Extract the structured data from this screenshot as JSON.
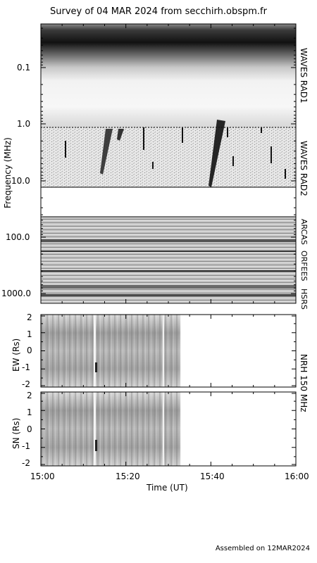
{
  "title": "Survey of 04 MAR 2024 from secchirh.obspm.fr",
  "footer": "Assembled on 12MAR2024",
  "colors": {
    "background": "#ffffff",
    "axis": "#000000"
  },
  "chart_data": [
    {
      "type": "heatmap",
      "name": "dynamic-spectrum",
      "ylabel": "Frequency (MHz)",
      "yscale": "log",
      "yaxis_reversed": true,
      "ytick_labels": [
        "0.1",
        "1.0",
        "10.0",
        "100.0",
        "1000.0"
      ],
      "instruments": [
        "WAVES RAD1",
        "WAVES RAD2",
        "ARCAS",
        "ORFEES",
        "HSRS"
      ],
      "xlim": [
        "15:00",
        "16:00"
      ],
      "colormap": "grayscale"
    },
    {
      "type": "heatmap",
      "name": "nrh-ew",
      "ylabel": "EW (Rs)",
      "ylim": [
        -2,
        2
      ],
      "ytick_labels": [
        "2",
        "1",
        "0",
        "-1",
        "-2"
      ],
      "data_end_time": "15:33",
      "colormap": "grayscale"
    },
    {
      "type": "heatmap",
      "name": "nrh-sn",
      "ylabel": "SN (Rs)",
      "ylim": [
        -2,
        2
      ],
      "ytick_labels": [
        "2",
        "1",
        "0",
        "-1",
        "-2"
      ],
      "data_end_time": "15:33",
      "colormap": "grayscale"
    }
  ],
  "nrh_label": "NRH 150 MHz",
  "xaxis": {
    "label": "Time (UT)",
    "ticks": [
      "15:00",
      "15:20",
      "15:40",
      "16:00"
    ]
  }
}
